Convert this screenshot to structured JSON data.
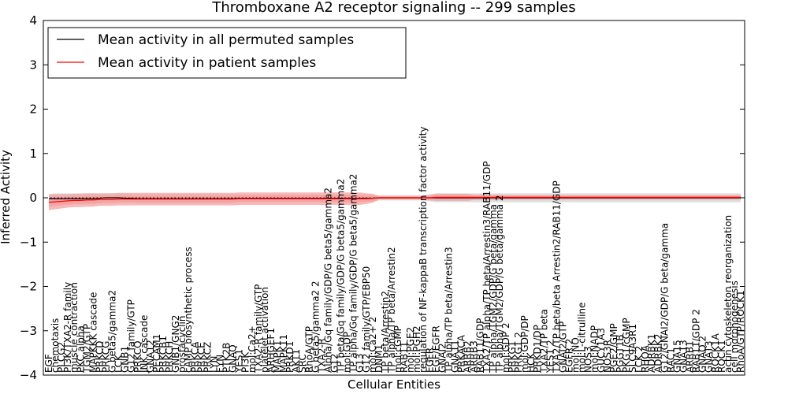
{
  "chart_data": {
    "type": "line",
    "title": "Thromboxane A2 receptor signaling -- 299 samples",
    "xlabel": "Cellular Entities",
    "ylabel": "Inferred Activity",
    "ylim": [
      -4,
      4
    ],
    "yticks": [
      -4,
      -3,
      -2,
      -1,
      0,
      1,
      2,
      3,
      4
    ],
    "ytick_labels": [
      "−4",
      "−3",
      "−2",
      "−1",
      "0",
      "1",
      "2",
      "3",
      "4"
    ],
    "grid": false,
    "legend_position": "top-left",
    "zero_line": "dotted",
    "categories": [
      "EGF",
      "chemotaxis",
      "PLCG2",
      "PI3K/TXA2-R family",
      "muscle contraction",
      "PKC alpha",
      "TGM2/GTP",
      "MAPKKK cascade",
      "PRKCD",
      "PRKCG",
      "G beta5/gamma2",
      "LCK",
      "GNB1",
      "G12 family/GTP",
      "PRKCQ",
      "JNK cascade",
      "GNA12",
      "PECAM1",
      "PRKCB1",
      "PRKCH",
      "GNB1/GNG2",
      "prostacyclin",
      "cAMP biosynthetic process",
      "PRKCA",
      "PRKCE",
      "PRKCZ",
      "LYN",
      "FYN",
      "PTK2B",
      "GNAQ",
      "YES1",
      "PI3K",
      "mol:Ca2+",
      "TXA2-R family/GTP",
      "platelet activation",
      "ARHGEF1",
      "MAPK1",
      "MAPK11",
      "PRKD1",
      "AKT1",
      "SRC",
      "RhoA/GTP",
      "G beta5/gamma2 2",
      "TXA2-R",
      "Alpha/Gq family/GDP/G beta5/gamma2",
      "G12",
      "TP beta/Gq family/GDP/G beta5/gamma2",
      "mol:GDP",
      "TP alpha/Gq family/GDP/G beta5/gamma2",
      "G13",
      "G12 family/GTP/EBP50",
      "mol:Ca2+ 2",
      "DNM1",
      "TP beta/Arrestin2",
      "TP alpha/TP beta/Arrestin2",
      "mol:cGMP",
      "RAB11",
      "mol:PGE2",
      "mol:PGH2",
      "regulation of NF-kappaB transcription factor activity",
      "EGFR",
      "EGF/EGFR",
      "GNAI2",
      "TP alpha/TP beta/Arrestin3",
      "GNA11",
      "PRKACA",
      "ARRB2",
      "ARRB3",
      "RAB11/GDP",
      "TXA2/TP alpha/TP beta/Arrestin3/RAB11/GDP",
      "TP alpha/TGM2/GDP/G beta/gamma",
      "TP alpha/TGM2/GDP/G beta/gamma 2",
      "mol:GDP 2",
      "PRKG1",
      "PRKG1 2",
      "mol:GDP/DP",
      "HCK",
      "PRKD1/DP",
      "TXA2/TP beta",
      "YES1 2",
      "TXA2/TP beta/beta Arrestin2/RAB11/GDP",
      "GNAI2/GTP",
      "EGFR 2",
      "mol:NO",
      "mol:L-citrulline",
      "NOS3",
      "mol:NADP",
      "GUCY1A3",
      "NOS3R",
      "PGE2/GMP",
      "PGGT1B",
      "PKG1/cGMP",
      "SLC9A3R1",
      "LCK 2",
      "RHOA",
      "ADRBK1",
      "ADRBK2",
      "G12/GNAI2/GDP/G beta/gamma",
      "RAC1",
      "GNA15",
      "GNA13",
      "ARRB1",
      "RAB11/GDP 2",
      "GNAQ 2",
      "GNAT3",
      "ROCK1A",
      "ROCK1",
      "actin cytoskeleton reorganization",
      "cell morphogenesis",
      "RhoA/GTP/ROCK1"
    ],
    "label_lengths": [
      3,
      10,
      5,
      18,
      18,
      9,
      8,
      13,
      5,
      5,
      14,
      3,
      4,
      14,
      5,
      11,
      5,
      6,
      6,
      5,
      9,
      12,
      25,
      5,
      5,
      5,
      3,
      3,
      5,
      4,
      4,
      4,
      8,
      16,
      19,
      7,
      5,
      6,
      5,
      4,
      3,
      8,
      15,
      6,
      36,
      3,
      39,
      7,
      36,
      3,
      20,
      7,
      4,
      16,
      22,
      8,
      5,
      8,
      8,
      53,
      4,
      8,
      5,
      22,
      5,
      6,
      5,
      5,
      9,
      39,
      26,
      28,
      8,
      5,
      5,
      10,
      3,
      7,
      12,
      4,
      35,
      9,
      4,
      6,
      15,
      4,
      8,
      7,
      4,
      8,
      6,
      9,
      8,
      3,
      4,
      6,
      6,
      31,
      4,
      5,
      5,
      5,
      9,
      4,
      5,
      5,
      5,
      32,
      17,
      14
    ],
    "series": [
      {
        "name": "Mean activity in all permuted samples",
        "color": "#000000",
        "band_color": "#d8d8d8",
        "values": [
          -0.02,
          -0.02,
          -0.02,
          -0.02,
          -0.02,
          -0.02,
          -0.02,
          -0.02,
          -0.01,
          0.0,
          0.0,
          0.0,
          -0.01,
          -0.01,
          -0.02,
          -0.02,
          -0.02,
          -0.02,
          -0.02,
          -0.02,
          -0.02,
          -0.02,
          -0.02,
          -0.02,
          -0.02,
          -0.02,
          -0.02,
          -0.02,
          -0.02,
          -0.02,
          -0.01,
          -0.01,
          -0.01,
          -0.01,
          -0.01,
          -0.01,
          -0.01,
          -0.01,
          -0.01,
          -0.01,
          -0.01,
          -0.01,
          -0.01,
          -0.01,
          -0.01,
          -0.01,
          -0.01,
          -0.01,
          -0.01,
          -0.01,
          -0.01,
          -0.01,
          0.0,
          0.0,
          0.0,
          0.0,
          0.0,
          0.0,
          0.0,
          0.0,
          0.0,
          0.0,
          0.0,
          0.0,
          0.0,
          0.0,
          0.0,
          0.0,
          0.0,
          0.0,
          0.0,
          0.0,
          0.0,
          0.0,
          0.0,
          0.0,
          0.0,
          0.0,
          0.0,
          0.0,
          0.0,
          0.0,
          0.0,
          0.0,
          0.0,
          0.0,
          0.0,
          0.0,
          0.0,
          0.0,
          0.0,
          0.0,
          0.0,
          0.0,
          0.0,
          0.0,
          0.0,
          0.0,
          0.0,
          0.0,
          0.0,
          0.0,
          0.0,
          0.0,
          0.0,
          0.0,
          0.0,
          0.0,
          0.0,
          0.0
        ],
        "band_half_width": [
          0.1,
          0.12,
          0.12,
          0.12,
          0.12,
          0.12,
          0.12,
          0.12,
          0.1,
          0.1,
          0.1,
          0.1,
          0.1,
          0.1,
          0.1,
          0.1,
          0.1,
          0.1,
          0.1,
          0.1,
          0.1,
          0.1,
          0.1,
          0.1,
          0.1,
          0.1,
          0.1,
          0.1,
          0.1,
          0.1,
          0.08,
          0.08,
          0.08,
          0.08,
          0.08,
          0.08,
          0.08,
          0.08,
          0.08,
          0.08,
          0.08,
          0.08,
          0.08,
          0.08,
          0.08,
          0.08,
          0.08,
          0.08,
          0.08,
          0.08,
          0.08,
          0.08,
          0.06,
          0.06,
          0.06,
          0.06,
          0.06,
          0.06,
          0.06,
          0.06,
          0.08,
          0.1,
          0.1,
          0.1,
          0.1,
          0.1,
          0.1,
          0.1,
          0.1,
          0.1,
          0.1,
          0.1,
          0.1,
          0.1,
          0.1,
          0.1,
          0.1,
          0.1,
          0.1,
          0.1,
          0.1,
          0.1,
          0.1,
          0.1,
          0.1,
          0.1,
          0.1,
          0.1,
          0.1,
          0.1,
          0.1,
          0.1,
          0.1,
          0.1,
          0.1,
          0.1,
          0.1,
          0.1,
          0.1,
          0.1,
          0.1,
          0.1,
          0.1,
          0.1,
          0.1,
          0.1,
          0.1,
          0.1,
          0.1,
          0.1
        ]
      },
      {
        "name": "Mean activity in patient samples",
        "color": "#ff0000",
        "band_color": "#f4a0a0",
        "values": [
          -0.1,
          -0.09,
          -0.08,
          -0.07,
          -0.06,
          -0.06,
          -0.05,
          -0.05,
          -0.04,
          -0.04,
          -0.04,
          -0.03,
          -0.03,
          -0.03,
          -0.03,
          -0.03,
          -0.03,
          -0.03,
          -0.03,
          -0.03,
          -0.03,
          -0.03,
          -0.03,
          -0.03,
          -0.03,
          -0.03,
          -0.03,
          -0.03,
          -0.03,
          -0.03,
          -0.02,
          -0.02,
          -0.02,
          -0.02,
          -0.02,
          -0.02,
          -0.02,
          -0.02,
          -0.02,
          -0.02,
          -0.02,
          -0.02,
          -0.02,
          -0.02,
          -0.02,
          -0.02,
          -0.02,
          -0.02,
          -0.02,
          -0.02,
          -0.02,
          -0.01,
          0.0,
          0.0,
          0.0,
          0.0,
          0.0,
          0.0,
          0.0,
          0.0,
          0.0,
          0.01,
          0.01,
          0.01,
          0.01,
          0.01,
          0.01,
          0.01,
          0.01,
          0.01,
          0.01,
          0.01,
          0.01,
          0.01,
          0.01,
          0.01,
          0.01,
          0.01,
          0.01,
          0.01,
          0.01,
          0.01,
          0.01,
          0.01,
          0.01,
          0.01,
          0.01,
          0.01,
          0.01,
          0.01,
          0.01,
          0.01,
          0.01,
          0.01,
          0.01,
          0.01,
          0.01,
          0.01,
          0.01,
          0.01,
          0.01,
          0.01,
          0.01,
          0.01,
          0.01,
          0.01,
          0.01,
          0.01,
          0.01,
          0.01
        ],
        "band_outer": [
          0.18,
          0.17,
          0.16,
          0.15,
          0.15,
          0.15,
          0.15,
          0.15,
          0.14,
          0.14,
          0.14,
          0.14,
          0.14,
          0.14,
          0.14,
          0.14,
          0.14,
          0.14,
          0.14,
          0.14,
          0.14,
          0.14,
          0.14,
          0.14,
          0.14,
          0.14,
          0.14,
          0.14,
          0.14,
          0.14,
          0.14,
          0.14,
          0.14,
          0.14,
          0.14,
          0.14,
          0.14,
          0.14,
          0.14,
          0.14,
          0.14,
          0.14,
          0.14,
          0.14,
          0.14,
          0.14,
          0.14,
          0.14,
          0.14,
          0.14,
          0.12,
          0.1,
          0.04,
          0.04,
          0.04,
          0.04,
          0.04,
          0.04,
          0.04,
          0.04,
          0.06,
          0.08,
          0.08,
          0.08,
          0.08,
          0.08,
          0.08,
          0.06,
          0.06,
          0.06,
          0.06,
          0.06,
          0.05,
          0.05,
          0.05,
          0.05,
          0.05,
          0.05,
          0.05,
          0.05,
          0.05,
          0.05,
          0.05,
          0.05,
          0.05,
          0.05,
          0.05,
          0.05,
          0.05,
          0.05,
          0.05,
          0.05,
          0.05,
          0.05,
          0.05,
          0.05,
          0.05,
          0.05,
          0.05,
          0.05,
          0.05,
          0.05,
          0.05,
          0.05,
          0.05,
          0.05,
          0.05,
          0.05,
          0.05,
          0.05
        ],
        "band_inner_ratio": 0.55
      }
    ]
  }
}
